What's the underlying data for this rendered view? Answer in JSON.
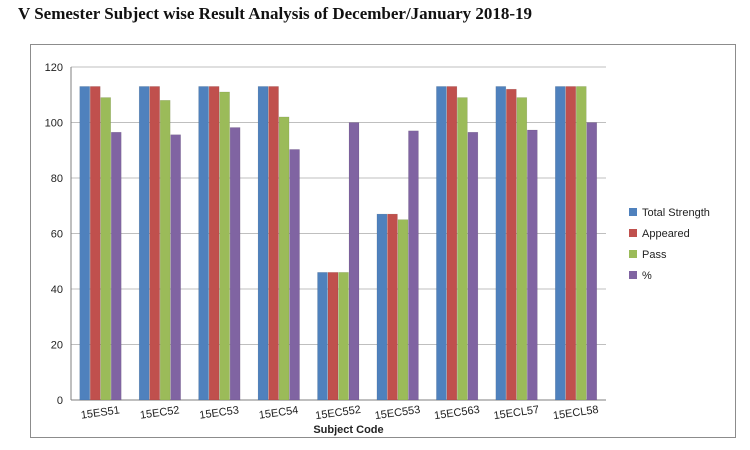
{
  "page": {
    "title": "V Semester Subject wise Result Analysis of December/January 2018-19"
  },
  "colors": {
    "Total Strength": "#4f81bd",
    "Appeared": "#c0504d",
    "Pass": "#9bbb59",
    "%": "#8064a2"
  },
  "chart_data": {
    "type": "bar",
    "title": "",
    "xlabel": "Subject Code",
    "ylabel": "",
    "ylim": [
      0,
      120
    ],
    "yticks": [
      0,
      20,
      40,
      60,
      80,
      100,
      120
    ],
    "grid": true,
    "legend_position": "right",
    "categories": [
      "15ES51",
      "15EC52",
      "15EC53",
      "15EC54",
      "15EC552",
      "15EC553",
      "15EC563",
      "15ECL57",
      "15ECL58"
    ],
    "series": [
      {
        "name": "Total Strength",
        "values": [
          113,
          113,
          113,
          113,
          46,
          67,
          113,
          113,
          113
        ]
      },
      {
        "name": "Appeared",
        "values": [
          113,
          113,
          113,
          113,
          46,
          67,
          113,
          112,
          113
        ]
      },
      {
        "name": "Pass",
        "values": [
          109,
          108,
          111,
          102,
          46,
          65,
          109,
          109,
          113
        ]
      },
      {
        "name": "%",
        "values": [
          96.5,
          95.6,
          98.2,
          90.3,
          100,
          97,
          96.5,
          97.3,
          100
        ]
      }
    ]
  }
}
